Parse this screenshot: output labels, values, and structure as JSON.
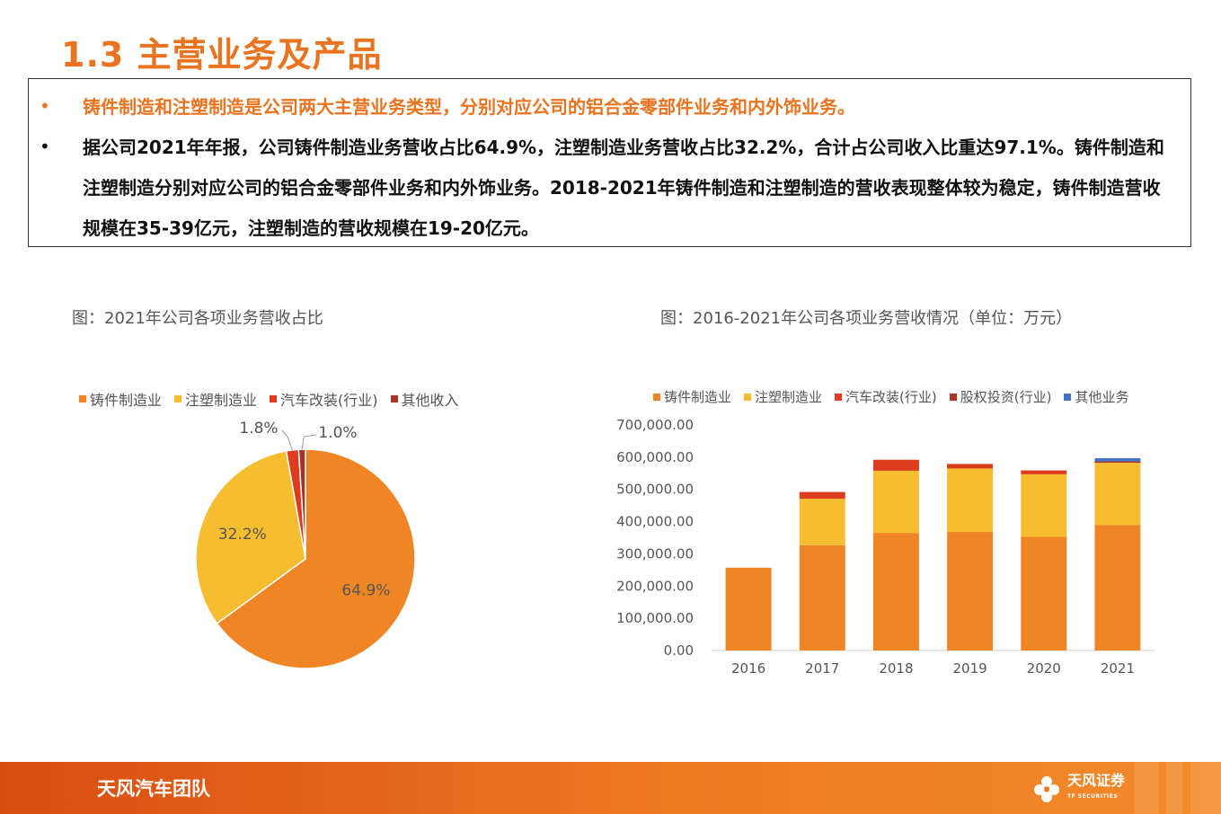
{
  "page": {
    "title": "1.3 主营业务及产品",
    "bullets": [
      {
        "dot": "•",
        "text": "铸件制造和注塑制造是公司两大主营业务类型，分别对应公司的铝合金零部件业务和内外饰业务。"
      },
      {
        "dot": "•",
        "text": "据公司2021年年报，公司铸件制造业务营收占比64.9%，注塑制造业务营收占比32.2%，合计占公司收入比重达97.1%。铸件制造和注塑制造分别对应公司的铝合金零部件业务和内外饰业务。2018-2021年铸件制造和注塑制造的营收表现整体较为稳定，铸件制造营收规模在35-39亿元，注塑制造的营收规模在19-20亿元。"
      }
    ],
    "footer": {
      "team": "天风汽车团队",
      "logo_text": "天风证券",
      "logo_sub": "TF SECURITIES",
      "logo_icon": "tf-flower-logo"
    }
  },
  "chart_data": [
    {
      "type": "pie",
      "title": "图：2021年公司各项业务营收占比",
      "labels": [
        "铸件制造业",
        "注塑制造业",
        "汽车改装(行业)",
        "其他收入"
      ],
      "values": [
        64.9,
        32.2,
        1.8,
        1.0
      ],
      "data_labels": [
        "64.9%",
        "32.2%",
        "1.8%",
        "1.0%"
      ],
      "colors": [
        "#f08526",
        "#f7bd31",
        "#dd3d1e",
        "#a83326"
      ],
      "legend_position": "top"
    },
    {
      "type": "bar",
      "stacked": true,
      "title": "图：2016-2021年公司各项业务营收情况（单位：万元）",
      "categories": [
        "2016",
        "2017",
        "2018",
        "2019",
        "2020",
        "2021"
      ],
      "series": [
        {
          "name": "铸件制造业",
          "color": "#f08526",
          "values": [
            257000,
            327000,
            365000,
            368000,
            353000,
            390000
          ]
        },
        {
          "name": "注塑制造业",
          "color": "#f7bd31",
          "values": [
            0,
            144000,
            193000,
            197000,
            194000,
            193000
          ]
        },
        {
          "name": "汽车改装(行业)",
          "color": "#dd3d1e",
          "values": [
            0,
            21000,
            34000,
            14000,
            12000,
            0
          ]
        },
        {
          "name": "股权投资(行业)",
          "color": "#a83326",
          "values": [
            0,
            0,
            0,
            0,
            0,
            4000
          ]
        },
        {
          "name": "其他业务",
          "color": "#4472c4",
          "values": [
            0,
            0,
            0,
            0,
            0,
            10000
          ]
        }
      ],
      "yticks": [
        "0.00",
        "100,000.00",
        "200,000.00",
        "300,000.00",
        "400,000.00",
        "500,000.00",
        "600,000.00",
        "700,000.00"
      ],
      "ylim": [
        0,
        700000
      ],
      "grid": false,
      "legend_position": "top"
    }
  ]
}
